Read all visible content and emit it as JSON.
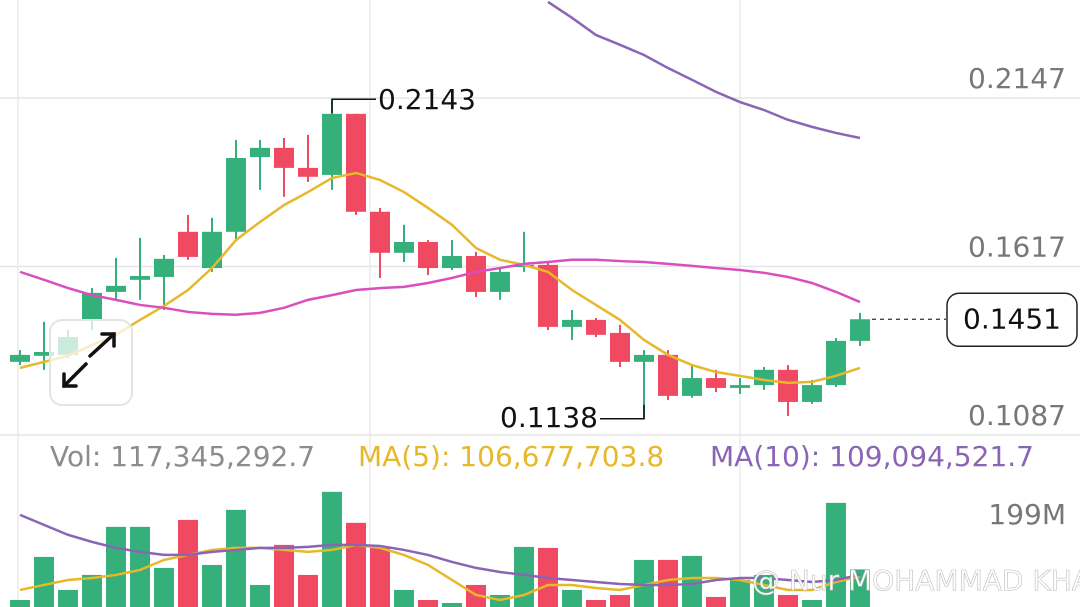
{
  "chart_data": {
    "type": "candlestick",
    "up_color": "#35b07a",
    "down_color": "#ef4a62",
    "ylim": [
      0.1087,
      0.2455
    ],
    "yticks": [
      0.2147,
      0.1617,
      0.1087
    ],
    "grid": true,
    "open": [
      0.1317,
      0.1336,
      0.1339,
      0.1449,
      0.1537,
      0.1575,
      0.1584,
      0.1726,
      0.1612,
      0.1726,
      0.1961,
      0.199,
      0.1927,
      0.1905,
      0.2097,
      0.1789,
      0.166,
      0.1694,
      0.1612,
      0.165,
      0.1537,
      0.1615,
      0.1622,
      0.1427,
      0.1449,
      0.1408,
      0.1317,
      0.1339,
      0.121,
      0.1266,
      0.1235,
      0.1244,
      0.1292,
      0.1191,
      0.1244,
      0.1383
    ],
    "high": [
      0.1354,
      0.1443,
      0.1417,
      0.1549,
      0.1644,
      0.1707,
      0.1653,
      0.1779,
      0.177,
      0.2015,
      0.2015,
      0.2021,
      0.2031,
      0.2143,
      0.2097,
      0.1801,
      0.1748,
      0.17,
      0.17,
      0.1663,
      0.1612,
      0.1726,
      0.1631,
      0.148,
      0.1455,
      0.1433,
      0.1354,
      0.1354,
      0.1307,
      0.1292,
      0.1266,
      0.1301,
      0.1307,
      0.126,
      0.1392,
      0.1471
    ],
    "low": [
      0.1307,
      0.1292,
      0.1329,
      0.1417,
      0.1512,
      0.1512,
      0.148,
      0.1638,
      0.16,
      0.17,
      0.1858,
      0.1836,
      0.1883,
      0.1858,
      0.1779,
      0.1581,
      0.1631,
      0.159,
      0.1606,
      0.1521,
      0.1512,
      0.16,
      0.1417,
      0.1386,
      0.1395,
      0.1301,
      0.1138,
      0.1197,
      0.1204,
      0.1222,
      0.1216,
      0.1229,
      0.1147,
      0.1185,
      0.1238,
      0.1367
    ],
    "close": [
      0.1339,
      0.1348,
      0.1395,
      0.1534,
      0.1556,
      0.1587,
      0.1641,
      0.1647,
      0.1726,
      0.1958,
      0.199,
      0.1927,
      0.1899,
      0.2097,
      0.1789,
      0.166,
      0.1694,
      0.1612,
      0.165,
      0.1537,
      0.16,
      0.1622,
      0.1427,
      0.1449,
      0.1402,
      0.1317,
      0.1339,
      0.121,
      0.1266,
      0.1235,
      0.1244,
      0.1292,
      0.1191,
      0.1244,
      0.1383,
      0.1451
    ],
    "lines": [
      {
        "color": "#e6b82a",
        "values": [
          0.1298,
          0.1317,
          0.1336,
          0.137,
          0.1402,
          0.1449,
          0.1493,
          0.1543,
          0.1612,
          0.17,
          0.1757,
          0.181,
          0.1851,
          0.1895,
          0.1911,
          0.1889,
          0.1851,
          0.1801,
          0.1748,
          0.1675,
          0.1638,
          0.1622,
          0.16,
          0.1543,
          0.1496,
          0.1449,
          0.1386,
          0.1339,
          0.1307,
          0.1285,
          0.1273,
          0.126,
          0.1251,
          0.1254,
          0.1273,
          0.1298
        ]
      },
      {
        "color": "#d94fbf",
        "values": [
          0.16,
          0.1575,
          0.1549,
          0.1527,
          0.1512,
          0.1496,
          0.1487,
          0.1474,
          0.1468,
          0.1465,
          0.1471,
          0.1487,
          0.1512,
          0.1527,
          0.1543,
          0.1549,
          0.1553,
          0.1565,
          0.1581,
          0.16,
          0.1612,
          0.1625,
          0.1631,
          0.1638,
          0.1638,
          0.1634,
          0.1631,
          0.1625,
          0.1619,
          0.1612,
          0.1606,
          0.1597,
          0.1584,
          0.1565,
          0.1537,
          0.1505
        ]
      },
      {
        "color": "#8b65b5",
        "values": [
          null,
          null,
          null,
          null,
          null,
          null,
          null,
          null,
          null,
          null,
          null,
          null,
          null,
          null,
          null,
          null,
          null,
          null,
          null,
          null,
          null,
          null,
          0.2449,
          0.2399,
          0.2345,
          0.2314,
          0.2282,
          0.2241,
          0.2204,
          0.2166,
          0.2134,
          0.2109,
          0.2078,
          0.2056,
          0.2037,
          0.2021
        ]
      }
    ],
    "high_label": 0.2143,
    "low_label": 0.1138,
    "last_price": 0.1451,
    "volume": {
      "ylim": [
        60,
        307
      ],
      "yticks": [
        {
          "value": 199,
          "label": "199M"
        }
      ],
      "values": [
        70.7,
        136.4,
        86.0,
        108.9,
        182.2,
        182.2,
        119.6,
        192.8,
        124.1,
        208.1,
        93.6,
        154.7,
        108.9,
        235.6,
        188.3,
        150.1,
        86.0,
        70.7,
        66.1,
        93.6,
        78.3,
        151.6,
        150.1,
        86.0,
        70.7,
        78.3,
        131.8,
        131.8,
        137.9,
        75.3,
        101.2,
        108.9,
        78.3,
        70.7,
        218.8,
        117.3
      ],
      "legend": [
        {
          "text": "Vol: 117,345,292.7",
          "color": "#8c8c8c"
        },
        {
          "text": "MA(5): 106,677,703.8",
          "color": "#e6b82a"
        },
        {
          "text": "MA(10): 109,094,521.7",
          "color": "#8b65b5"
        }
      ],
      "lines": [
        {
          "color": "#e6b82a",
          "values": [
            86.0,
            93.6,
            101.2,
            104.3,
            108.9,
            116.5,
            131.8,
            139.4,
            147.0,
            150.1,
            150.1,
            147.0,
            144.0,
            147.0,
            154.7,
            150.1,
            139.4,
            124.1,
            101.2,
            78.3,
            70.7,
            78.3,
            93.6,
            93.6,
            89.0,
            86.0,
            93.6,
            101.2,
            104.3,
            104.3,
            101.2,
            93.6,
            86.0,
            86.0,
            98.2,
            106.7
          ]
        },
        {
          "color": "#8b65b5",
          "values": [
            200.5,
            185.2,
            170.0,
            159.3,
            150.1,
            144.0,
            139.4,
            139.4,
            144.0,
            147.0,
            150.1,
            150.1,
            151.6,
            154.7,
            154.7,
            153.1,
            147.0,
            139.4,
            128.7,
            119.6,
            113.4,
            108.9,
            104.3,
            101.2,
            98.2,
            95.1,
            93.6,
            93.6,
            95.1,
            101.2,
            104.3,
            104.3,
            101.2,
            98.2,
            101.2,
            109.1
          ]
        }
      ]
    }
  },
  "watermark": "@ Nur MOHAMMAD KHAN"
}
